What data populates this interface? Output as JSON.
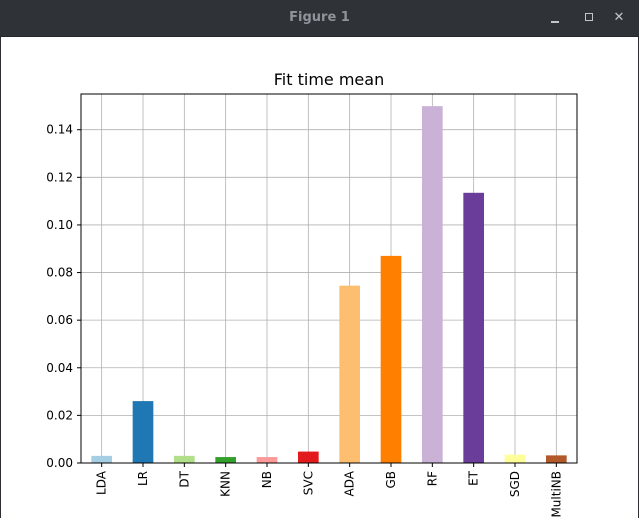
{
  "window": {
    "title": "Figure 1",
    "controls": [
      "minimize-icon",
      "maximize-icon",
      "close-icon"
    ]
  },
  "chart_data": {
    "type": "bar",
    "title": "Fit time mean",
    "xlabel": "",
    "ylabel": "",
    "categories": [
      "LDA",
      "LR",
      "DT",
      "KNN",
      "NB",
      "SVC",
      "ADA",
      "GB",
      "RF",
      "ET",
      "SGD",
      "MultiNB"
    ],
    "values": [
      0.003,
      0.026,
      0.003,
      0.0025,
      0.0025,
      0.0048,
      0.0745,
      0.087,
      0.1499,
      0.1135,
      0.0035,
      0.0032
    ],
    "colors": [
      "#a6cee3",
      "#1f78b4",
      "#b2df8a",
      "#33a02c",
      "#fb9a99",
      "#e31a1c",
      "#fdbf6f",
      "#ff7f00",
      "#cab2d6",
      "#6a3d9a",
      "#ffff99",
      "#b15928"
    ],
    "ylim": [
      0,
      0.155
    ],
    "yticks": [
      0.0,
      0.02,
      0.04,
      0.06,
      0.08,
      0.1,
      0.12,
      0.14
    ],
    "ytick_labels": [
      "0.00",
      "0.02",
      "0.04",
      "0.06",
      "0.08",
      "0.10",
      "0.12",
      "0.14"
    ],
    "grid": true,
    "legend": false
  }
}
